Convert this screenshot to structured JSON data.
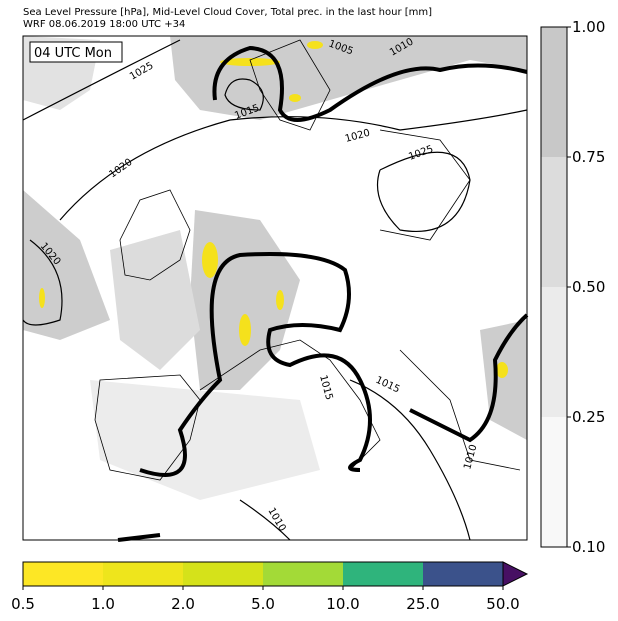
{
  "header": {
    "title": "Sea Level Pressure [hPa], Mid-Level Cloud Cover, Total prec. in the last hour [mm]",
    "subtitle": "WRF 08.06.2019 18:00 UTC +34"
  },
  "map": {
    "time_label": "04 UTC Mon",
    "isobar_labels": [
      "1005",
      "1010",
      "1025",
      "1015",
      "1020",
      "1025",
      "1020",
      "1020",
      "1015",
      "1015",
      "1010",
      "1010"
    ]
  },
  "cloud_colorbar": {
    "ticks": [
      {
        "value": 1,
        "label": "1.00"
      },
      {
        "value": 0.75,
        "label": "0.75"
      },
      {
        "value": 0.5,
        "label": "0.50"
      },
      {
        "value": 0.25,
        "label": "0.25"
      },
      {
        "value": 0.1,
        "label": "0.10"
      }
    ],
    "colors": [
      "#c8c8c8",
      "#dcdcdc",
      "#ebebeb",
      "#f8f8f8"
    ]
  },
  "precip_colorbar": {
    "ticks": [
      0.5,
      {
        "value": 1,
        "label": "1.0"
      },
      {
        "value": 2,
        "label": "2.0"
      },
      {
        "value": 5,
        "label": "5.0"
      },
      {
        "value": 10,
        "label": "10.0"
      },
      {
        "value": 25,
        "label": "25.0"
      },
      {
        "value": 50,
        "label": "50.0"
      }
    ],
    "colors": [
      "#fde725",
      "#eee51c",
      "#d5e21a",
      "#a3da37",
      "#2fb47c",
      "#3b528b"
    ],
    "extend_color": "#471063"
  }
}
